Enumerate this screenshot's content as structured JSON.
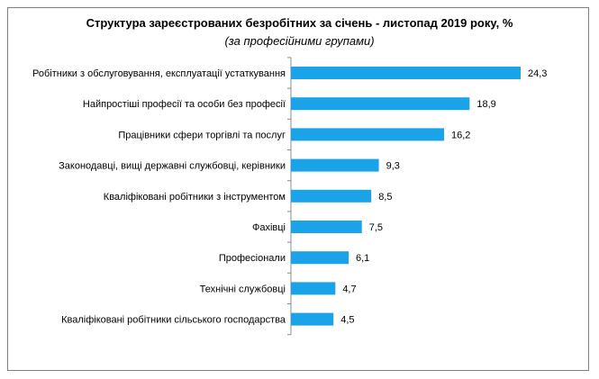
{
  "chart_data": {
    "type": "bar",
    "orientation": "horizontal",
    "title": "Структура зареєстрованих безробітних за січень - листопад 2019 року, %",
    "subtitle": "(за професійними групами)",
    "categories": [
      "Робітники з обслуговування, експлуатації устаткування",
      "Найпростіші професії та особи без професії",
      "Працівники сфери торгівлі та послуг",
      "Законодавці, вищі державні службовці, керівники",
      "Кваліфіковані робітники з інструментом",
      "Фахівці",
      "Професіонали",
      "Технічні службовці",
      "Кваліфіковані робітники сільського господарства"
    ],
    "values": [
      24.3,
      18.9,
      16.2,
      9.3,
      8.5,
      7.5,
      6.1,
      4.7,
      4.5
    ],
    "value_labels": [
      "24,3",
      "18,9",
      "16,2",
      "9,3",
      "8,5",
      "7,5",
      "6,1",
      "4,7",
      "4,5"
    ],
    "xlim": [
      0,
      24.3
    ],
    "grid": false,
    "legend": "none",
    "bar_color": "#1aa3e8"
  }
}
